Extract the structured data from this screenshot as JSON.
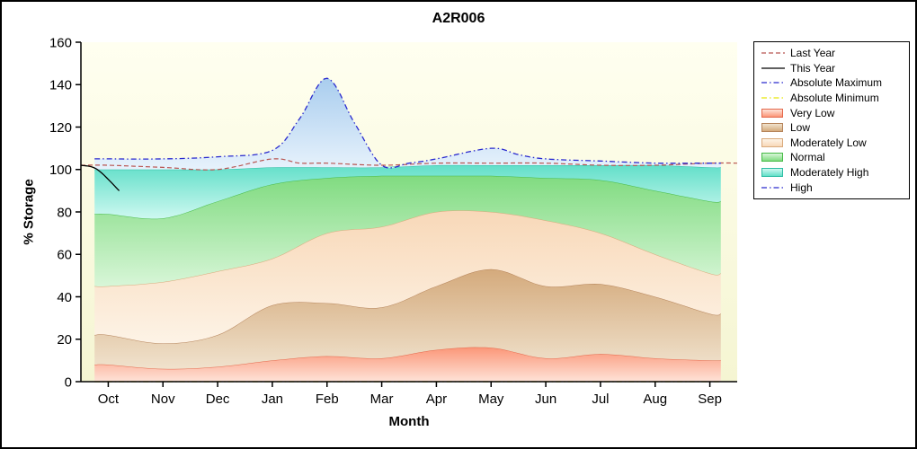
{
  "chart_data": {
    "type": "area",
    "title": "A2R006",
    "xlabel": "Month",
    "ylabel": "% Storage",
    "ylim": [
      0,
      160
    ],
    "yticks": [
      0,
      20,
      40,
      60,
      80,
      100,
      120,
      140,
      160
    ],
    "categories": [
      "Oct",
      "Nov",
      "Dec",
      "Jan",
      "Feb",
      "Mar",
      "Apr",
      "May",
      "Jun",
      "Jul",
      "Aug",
      "Sep"
    ],
    "plot_background_top": "#fffff0",
    "plot_background_bottom": "#f5f5d2",
    "bands": [
      {
        "name": "Very Low",
        "x": [
          0,
          1,
          2,
          3,
          4,
          5,
          6,
          7,
          8,
          9,
          10,
          11
        ],
        "values": [
          8,
          6,
          7,
          10,
          12,
          11,
          15,
          16,
          11,
          13,
          11,
          10
        ],
        "color_top": "#fb9678",
        "color_bottom": "#fee3d8",
        "stroke": "#e4674a"
      },
      {
        "name": "Low",
        "x": [
          0,
          1,
          2,
          3,
          4,
          5,
          6,
          7,
          8,
          9,
          10,
          11
        ],
        "values": [
          22,
          18,
          22,
          36,
          37,
          35,
          45,
          53,
          45,
          46,
          40,
          32
        ],
        "color_top": "#d4aa7c",
        "color_bottom": "#f0e2cd",
        "stroke": "#b5835a"
      },
      {
        "name": "Moderately Low",
        "x": [
          0,
          1,
          2,
          3,
          4,
          5,
          6,
          7,
          8,
          9,
          10,
          11
        ],
        "values": [
          45,
          47,
          52,
          58,
          70,
          73,
          80,
          80,
          76,
          70,
          60,
          51
        ],
        "color_top": "#f8d8b8",
        "color_bottom": "#fdf3e6",
        "stroke": "#d9a97b"
      },
      {
        "name": "Normal",
        "x": [
          0,
          1,
          2,
          3,
          4,
          5,
          6,
          7,
          8,
          9,
          10,
          11
        ],
        "values": [
          79,
          77,
          85,
          93,
          96,
          97,
          97,
          97,
          96,
          95,
          90,
          85
        ],
        "color_top": "#80db80",
        "color_bottom": "#d8f6d8",
        "stroke": "#46ba46"
      },
      {
        "name": "Moderately High",
        "x": [
          0,
          1,
          2,
          3,
          4,
          5,
          6,
          7,
          8,
          9,
          10,
          11
        ],
        "values": [
          100,
          100,
          100,
          101,
          101,
          101,
          102,
          102,
          102,
          102,
          102,
          101
        ],
        "color_top": "#62dfc9",
        "color_bottom": "#cef8f0",
        "stroke": "#2dbda4"
      },
      {
        "name": "High",
        "x": [
          0,
          1,
          2,
          3,
          3.5,
          4,
          4.5,
          5,
          5.5,
          6,
          7,
          7.5,
          8,
          9,
          10,
          11
        ],
        "values": [
          105,
          105,
          106,
          109,
          124,
          143,
          122,
          102,
          103,
          105,
          110,
          107,
          105,
          104,
          103,
          103
        ],
        "color_top": "#a9cdee",
        "color_bottom": "#e7f2fc",
        "stroke": ""
      }
    ],
    "lines": [
      {
        "name": "Absolute Minimum",
        "color": "#e8e80a",
        "dash": "6 3 1.5 3",
        "width": 1.2,
        "x": [
          -0.25,
          11.2
        ],
        "values": [
          0,
          0
        ]
      },
      {
        "name": "Last Year",
        "color": "#b85450",
        "dash": "5 3",
        "width": 1.2,
        "x": [
          -0.5,
          0,
          1,
          2,
          3,
          3.5,
          4,
          5,
          6,
          7,
          8,
          9,
          10,
          11,
          11.5
        ],
        "values": [
          102,
          102,
          101,
          100,
          105,
          103,
          103,
          102,
          103,
          103,
          103,
          102,
          102,
          103,
          103
        ]
      },
      {
        "name": "Absolute Maximum",
        "color": "#2a2ace",
        "dash": "6 3 1.5 3",
        "width": 1.3,
        "use_band_top": "High"
      },
      {
        "name": "This Year",
        "color": "#000000",
        "dash": "",
        "width": 1.3,
        "x": [
          -0.5,
          -0.2,
          0.2
        ],
        "values": [
          102,
          100,
          90
        ]
      }
    ],
    "legend": [
      {
        "label": "Last Year",
        "glyph": "line",
        "color": "#b85450",
        "dash": "5 3"
      },
      {
        "label": "This Year",
        "glyph": "line",
        "color": "#000000",
        "dash": ""
      },
      {
        "label": "Absolute Maximum",
        "glyph": "line",
        "color": "#2a2ace",
        "dash": "6 3 1.5 3"
      },
      {
        "label": "Absolute Minimum",
        "glyph": "line",
        "color": "#e8e80a",
        "dash": "6 3 1.5 3"
      },
      {
        "label": "Very Low",
        "glyph": "swatch",
        "band": "Very Low"
      },
      {
        "label": "Low",
        "glyph": "swatch",
        "band": "Low"
      },
      {
        "label": "Moderately Low",
        "glyph": "swatch",
        "band": "Moderately Low"
      },
      {
        "label": "Normal",
        "glyph": "swatch",
        "band": "Normal"
      },
      {
        "label": "Moderately High",
        "glyph": "swatch",
        "band": "Moderately High"
      },
      {
        "label": "High",
        "glyph": "line",
        "color": "#2a2ace",
        "dash": "6 3 1.5 3"
      }
    ]
  }
}
